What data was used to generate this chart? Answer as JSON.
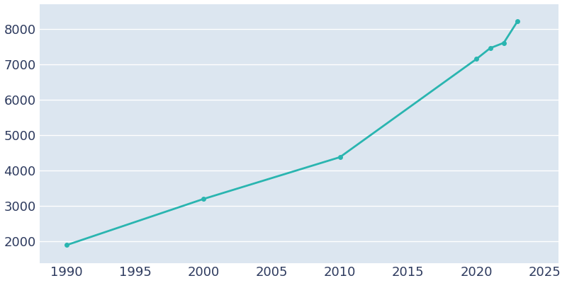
{
  "years": [
    1990,
    2000,
    2010,
    2020,
    2021,
    2022,
    2023
  ],
  "population": [
    1904,
    3201,
    4380,
    7148,
    7453,
    7604,
    8208
  ],
  "line_color": "#2ab5b0",
  "marker_color": "#2ab5b0",
  "background_color": "#ffffff",
  "plot_bg_color": "#dce6f0",
  "grid_color": "#ffffff",
  "xlim": [
    1988,
    2026
  ],
  "ylim": [
    1400,
    8700
  ],
  "xticks": [
    1990,
    1995,
    2000,
    2005,
    2010,
    2015,
    2020,
    2025
  ],
  "yticks": [
    2000,
    3000,
    4000,
    5000,
    6000,
    7000,
    8000
  ],
  "tick_label_color": "#2d3a5e",
  "tick_fontsize": 13,
  "line_width": 2.0,
  "marker_size": 4
}
